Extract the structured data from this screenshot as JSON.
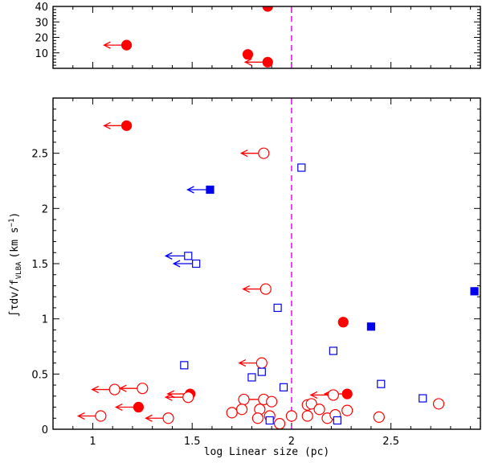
{
  "chart_data": {
    "type": "scatter",
    "xlabel": "log Linear size (pc)",
    "ylabel": "∫τdv/f_VLBA (km s⁻¹)",
    "ylabel_parts": {
      "integral": "∫τdv/f",
      "subscript": "VLBA",
      "unit_open": "(km s",
      "unit_exp": "−1",
      "unit_close": ")"
    },
    "xlim": [
      0.8,
      2.95
    ],
    "x_ticks": [
      "1",
      "1.5",
      "2",
      "2.5"
    ],
    "x_tick_values": [
      1,
      1.5,
      2,
      2.5
    ],
    "vline": {
      "x": 2.0,
      "color": "#e000e0",
      "style": "dashed"
    },
    "colors": {
      "red": "#ff0000",
      "blue": "#0000ee",
      "frame": "#000000"
    },
    "panels": [
      {
        "name": "top",
        "ylim": [
          0,
          40
        ],
        "y_ticks": [
          "10",
          "20",
          "30",
          "40"
        ],
        "y_tick_values": [
          10,
          20,
          30,
          40
        ]
      },
      {
        "name": "bottom",
        "ylim": [
          0,
          3.0
        ],
        "y_ticks": [
          "0",
          "0.5",
          "1",
          "1.5",
          "2",
          "2.5"
        ],
        "y_tick_values": [
          0,
          0.5,
          1,
          1.5,
          2,
          2.5
        ]
      }
    ],
    "series": [
      {
        "name": "red filled circles",
        "marker": "circle",
        "filled": true,
        "color": "red",
        "points": [
          {
            "panel": "top",
            "x": 1.88,
            "y": 40,
            "limit": false
          },
          {
            "panel": "top",
            "x": 1.17,
            "y": 15,
            "limit": true
          },
          {
            "panel": "top",
            "x": 1.78,
            "y": 9,
            "limit": false
          },
          {
            "panel": "top",
            "x": 1.88,
            "y": 4,
            "limit": true
          },
          {
            "panel": "bottom",
            "x": 1.17,
            "y": 2.75,
            "limit": true
          },
          {
            "panel": "bottom",
            "x": 2.26,
            "y": 0.97,
            "limit": false
          },
          {
            "panel": "bottom",
            "x": 1.49,
            "y": 0.32,
            "limit": true
          },
          {
            "panel": "bottom",
            "x": 2.28,
            "y": 0.32,
            "limit": true
          },
          {
            "panel": "bottom",
            "x": 1.23,
            "y": 0.2,
            "limit": true
          }
        ]
      },
      {
        "name": "red open circles",
        "marker": "circle",
        "filled": false,
        "color": "red",
        "points": [
          {
            "panel": "bottom",
            "x": 1.86,
            "y": 2.5,
            "limit": true
          },
          {
            "panel": "bottom",
            "x": 1.87,
            "y": 1.27,
            "limit": true
          },
          {
            "panel": "bottom",
            "x": 1.85,
            "y": 0.6,
            "limit": true
          },
          {
            "panel": "bottom",
            "x": 1.11,
            "y": 0.36,
            "limit": true
          },
          {
            "panel": "bottom",
            "x": 1.25,
            "y": 0.37,
            "limit": true
          },
          {
            "panel": "bottom",
            "x": 1.48,
            "y": 0.29,
            "limit": true
          },
          {
            "panel": "bottom",
            "x": 1.86,
            "y": 0.27,
            "limit": true
          },
          {
            "panel": "bottom",
            "x": 2.21,
            "y": 0.31,
            "limit": true
          },
          {
            "panel": "bottom",
            "x": 1.04,
            "y": 0.12,
            "limit": true
          },
          {
            "panel": "bottom",
            "x": 1.38,
            "y": 0.1,
            "limit": true
          },
          {
            "panel": "bottom",
            "x": 1.76,
            "y": 0.27,
            "limit": false
          },
          {
            "panel": "bottom",
            "x": 1.9,
            "y": 0.25,
            "limit": false
          },
          {
            "panel": "bottom",
            "x": 1.7,
            "y": 0.15,
            "limit": false
          },
          {
            "panel": "bottom",
            "x": 1.75,
            "y": 0.18,
            "limit": false
          },
          {
            "panel": "bottom",
            "x": 1.84,
            "y": 0.18,
            "limit": false
          },
          {
            "panel": "bottom",
            "x": 1.83,
            "y": 0.1,
            "limit": false
          },
          {
            "panel": "bottom",
            "x": 1.89,
            "y": 0.12,
            "limit": false
          },
          {
            "panel": "bottom",
            "x": 1.94,
            "y": 0.05,
            "limit": false
          },
          {
            "panel": "bottom",
            "x": 2.0,
            "y": 0.12,
            "limit": false
          },
          {
            "panel": "bottom",
            "x": 2.08,
            "y": 0.22,
            "limit": false
          },
          {
            "panel": "bottom",
            "x": 2.1,
            "y": 0.23,
            "limit": false
          },
          {
            "panel": "bottom",
            "x": 2.14,
            "y": 0.18,
            "limit": false
          },
          {
            "panel": "bottom",
            "x": 2.08,
            "y": 0.12,
            "limit": false
          },
          {
            "panel": "bottom",
            "x": 2.18,
            "y": 0.1,
            "limit": false
          },
          {
            "panel": "bottom",
            "x": 2.22,
            "y": 0.13,
            "limit": false
          },
          {
            "panel": "bottom",
            "x": 2.28,
            "y": 0.17,
            "limit": false
          },
          {
            "panel": "bottom",
            "x": 2.44,
            "y": 0.11,
            "limit": false
          },
          {
            "panel": "bottom",
            "x": 2.74,
            "y": 0.23,
            "limit": false
          }
        ]
      },
      {
        "name": "blue filled squares",
        "marker": "square",
        "filled": true,
        "color": "blue",
        "points": [
          {
            "panel": "bottom",
            "x": 1.59,
            "y": 2.17,
            "limit": true
          },
          {
            "panel": "bottom",
            "x": 2.4,
            "y": 0.93,
            "limit": false
          },
          {
            "panel": "bottom",
            "x": 2.92,
            "y": 1.25,
            "limit": false
          }
        ]
      },
      {
        "name": "blue open squares",
        "marker": "square",
        "filled": false,
        "color": "blue",
        "points": [
          {
            "panel": "bottom",
            "x": 2.05,
            "y": 2.37,
            "limit": false
          },
          {
            "panel": "bottom",
            "x": 1.48,
            "y": 1.57,
            "limit": true
          },
          {
            "panel": "bottom",
            "x": 1.52,
            "y": 1.5,
            "limit": true
          },
          {
            "panel": "bottom",
            "x": 1.93,
            "y": 1.1,
            "limit": false
          },
          {
            "panel": "bottom",
            "x": 2.21,
            "y": 0.71,
            "limit": false
          },
          {
            "panel": "bottom",
            "x": 1.46,
            "y": 0.58,
            "limit": false
          },
          {
            "panel": "bottom",
            "x": 1.85,
            "y": 0.52,
            "limit": false
          },
          {
            "panel": "bottom",
            "x": 1.8,
            "y": 0.47,
            "limit": false
          },
          {
            "panel": "bottom",
            "x": 2.45,
            "y": 0.41,
            "limit": false
          },
          {
            "panel": "bottom",
            "x": 1.96,
            "y": 0.38,
            "limit": false
          },
          {
            "panel": "bottom",
            "x": 2.66,
            "y": 0.28,
            "limit": false
          },
          {
            "panel": "bottom",
            "x": 1.89,
            "y": 0.08,
            "limit": false
          },
          {
            "panel": "bottom",
            "x": 2.23,
            "y": 0.08,
            "limit": false
          }
        ]
      }
    ]
  }
}
